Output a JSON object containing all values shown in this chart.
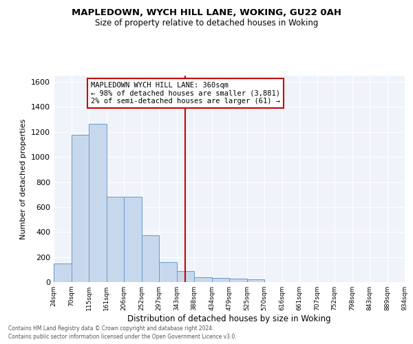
{
  "title": "MAPLEDOWN, WYCH HILL LANE, WOKING, GU22 0AH",
  "subtitle": "Size of property relative to detached houses in Woking",
  "xlabel": "Distribution of detached houses by size in Woking",
  "ylabel": "Number of detached properties",
  "bar_color": "#c8d8ec",
  "bar_edge_color": "#6699cc",
  "background_color": "#f0f4fa",
  "grid_color": "#ffffff",
  "bins": [
    24,
    70,
    115,
    161,
    206,
    252,
    297,
    343,
    388,
    434,
    479,
    525,
    570,
    616,
    661,
    707,
    752,
    798,
    843,
    889,
    934
  ],
  "bin_labels": [
    "24sqm",
    "70sqm",
    "115sqm",
    "161sqm",
    "206sqm",
    "252sqm",
    "297sqm",
    "343sqm",
    "388sqm",
    "434sqm",
    "479sqm",
    "525sqm",
    "570sqm",
    "616sqm",
    "661sqm",
    "707sqm",
    "752sqm",
    "798sqm",
    "843sqm",
    "889sqm",
    "934sqm"
  ],
  "values": [
    150,
    1175,
    1265,
    680,
    680,
    375,
    160,
    90,
    40,
    35,
    25,
    20,
    0,
    0,
    0,
    0,
    0,
    0,
    0,
    0
  ],
  "red_line_x": 365,
  "ylim": [
    0,
    1650
  ],
  "yticks": [
    0,
    200,
    400,
    600,
    800,
    1000,
    1200,
    1400,
    1600
  ],
  "annotation_title": "MAPLEDOWN WYCH HILL LANE: 360sqm",
  "annotation_line1": "← 98% of detached houses are smaller (3,881)",
  "annotation_line2": "2% of semi-detached houses are larger (61) →",
  "footer_line1": "Contains HM Land Registry data © Crown copyright and database right 2024.",
  "footer_line2": "Contains public sector information licensed under the Open Government Licence v3.0."
}
